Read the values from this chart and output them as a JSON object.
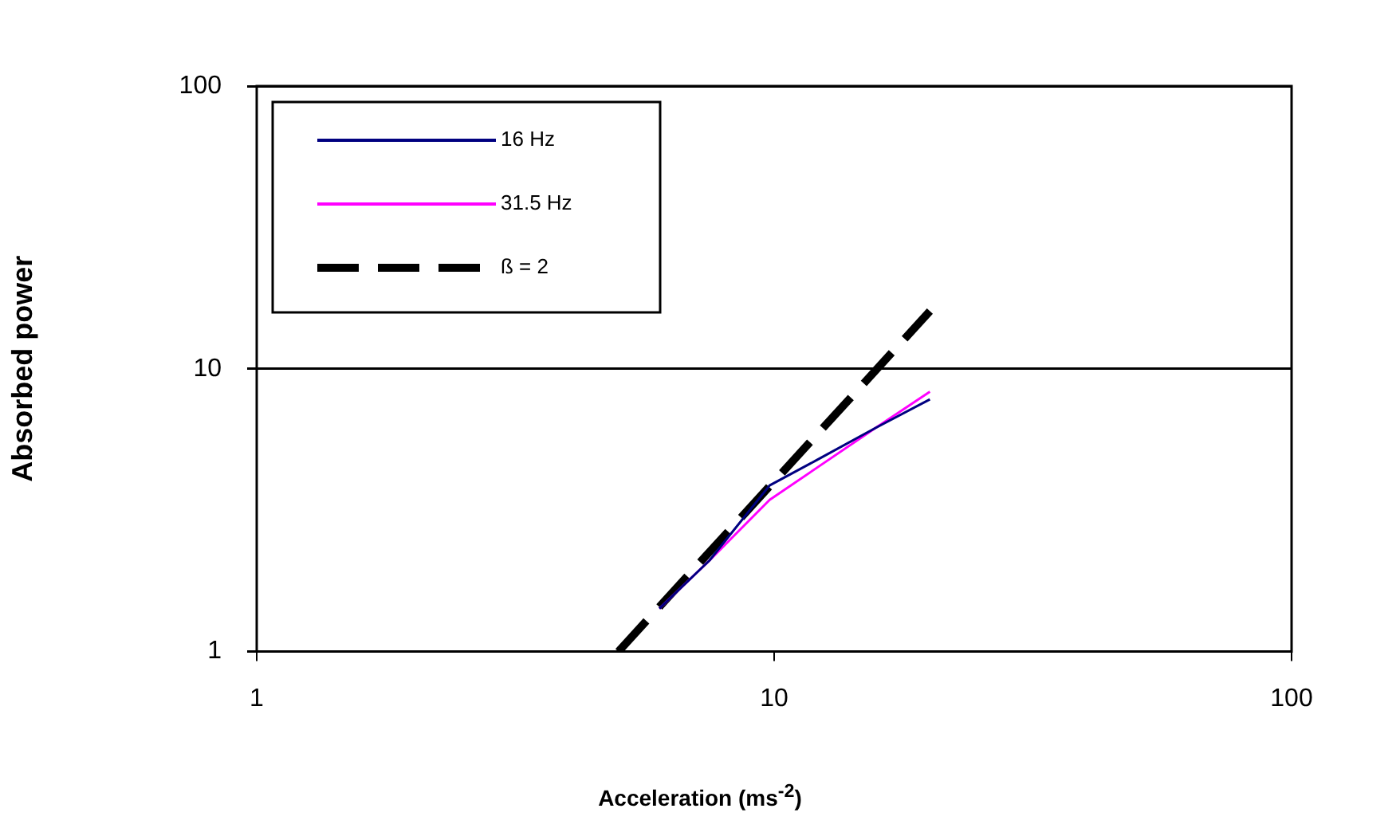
{
  "chart_data": {
    "type": "line",
    "xlabel": "Acceleration (ms$^{-2}$)",
    "ylabel": "Absorbed power",
    "log": "xy",
    "xlim": [
      1,
      100
    ],
    "xticks": [
      1,
      10,
      100
    ],
    "ylim": [
      1,
      100
    ],
    "yticks": [
      1,
      10,
      100
    ],
    "grid": "y",
    "legend": "top left",
    "marker": "none",
    "series": [
      {
        "name": "16 Hz",
        "color": "#000080",
        "x": [
          6,
          7.5,
          9.8,
          12.1,
          15.7,
          20
        ],
        "values": [
          1.42,
          2.1,
          3.87,
          4.76,
          6.18,
          7.8
        ]
      },
      {
        "name": "31.5 Hz",
        "color": "#ff00ff",
        "x": [
          6,
          7.5,
          9.8,
          12.1,
          15.7,
          20
        ],
        "values": [
          1.42,
          2.1,
          3.44,
          4.47,
          6.18,
          8.3
        ]
      },
      {
        "name": "ß = 2",
        "color": "#000000",
        "line_style": "dashed",
        "x": [
          5,
          20
        ],
        "values": [
          1,
          16
        ]
      }
    ]
  }
}
